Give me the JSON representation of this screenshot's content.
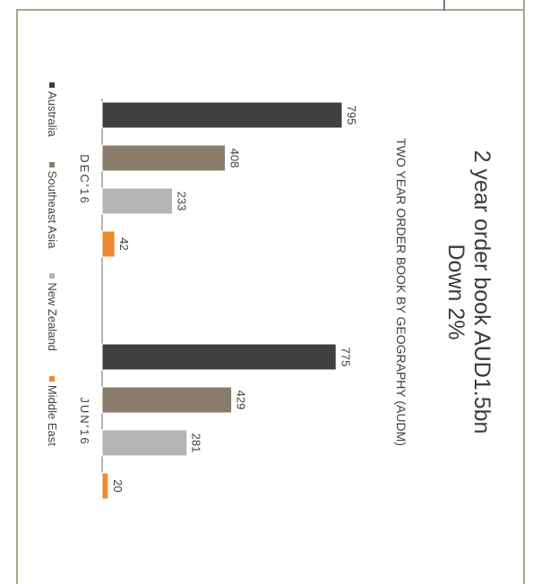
{
  "title_line1": "2 year order book AUD1.5bn",
  "title_line2": "Down 2%",
  "colors": {
    "Australia": "#3f3f3f",
    "Southeast Asia": "#8b7b6b",
    "New Zealand": "#b2b4b6",
    "Middle East": "#ee8a2f",
    "frame": "#a3a88c"
  },
  "chart_data": {
    "type": "bar",
    "title": "TWO YEAR ORDER BOOK BY GEOGRAPHY (AUDM)",
    "categories": [
      "DEC'16",
      "JUN'16"
    ],
    "series": [
      {
        "name": "Australia",
        "values": [
          795,
          775
        ]
      },
      {
        "name": "Southeast Asia",
        "values": [
          408,
          429
        ]
      },
      {
        "name": "New Zealand",
        "values": [
          233,
          281
        ]
      },
      {
        "name": "Middle East",
        "values": [
          42,
          20
        ]
      }
    ],
    "xlabel": "",
    "ylabel": "",
    "ylim": [
      0,
      900
    ],
    "grid": false,
    "legend": "bottom"
  }
}
